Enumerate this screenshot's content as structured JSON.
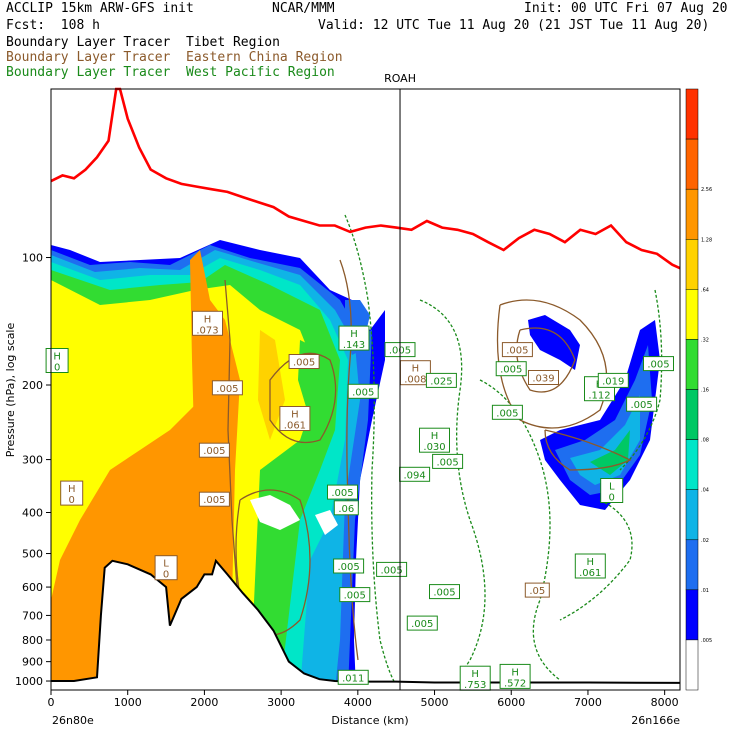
{
  "header": {
    "model": "ACCLIP 15km ARW-GFS init",
    "center": "NCAR/MMM",
    "init": "Init: 00 UTC Fri 07 Aug 20",
    "fcst": "Fcst:  108 h",
    "valid": "Valid: 12 UTC Tue 11 Aug 20 (21 JST Tue 11 Aug 20)",
    "legend": [
      {
        "text": "Boundary Layer Tracer  Tibet Region",
        "color": "#000000"
      },
      {
        "text": "Boundary Layer Tracer  Eastern China Region",
        "color": "#8b5a2b"
      },
      {
        "text": "Boundary Layer Tracer  West Pacific Region",
        "color": "#1a8a1a"
      }
    ]
  },
  "chart_data": {
    "type": "heatmap",
    "title": "",
    "xlabel": "Distance (km)",
    "ylabel": "Pressure (hPa), log scale",
    "xlim": [
      0,
      8200
    ],
    "ylim": [
      1050,
      40
    ],
    "y_scale": "log",
    "x_ticks": [
      0,
      1000,
      2000,
      3000,
      4000,
      5000,
      6000,
      7000,
      8000
    ],
    "y_ticks": [
      100,
      200,
      300,
      400,
      500,
      600,
      700,
      800,
      900,
      1000
    ],
    "x_endpoint_labels": [
      "26n80e",
      "26n166e"
    ],
    "vertical_marker": {
      "label": "ROAH",
      "x": 4550
    },
    "colorbar_levels": [
      ".005",
      ".01",
      ".02",
      ".04",
      ".08",
      ".16",
      ".32",
      ".64",
      "1.28",
      "2.56"
    ],
    "colorbar_colors": [
      "#ffffff",
      "#0000ff",
      "#1e6ef0",
      "#0fb4e6",
      "#00e6c8",
      "#00c864",
      "#32dc32",
      "#ffff00",
      "#ffd200",
      "#ff9600",
      "#ff6400",
      "#ff3200"
    ],
    "tropopause_color": "#ff0000",
    "tropopause": {
      "x": [
        0,
        150,
        300,
        450,
        600,
        750,
        850,
        900,
        1000,
        1150,
        1300,
        1500,
        1700,
        1900,
        2100,
        2300,
        2500,
        2700,
        2900,
        3100,
        3300,
        3500,
        3700,
        3900,
        4100,
        4300,
        4500,
        4700,
        4900,
        5100,
        5300,
        5500,
        5700,
        5900,
        6100,
        6300,
        6500,
        6700,
        6900,
        7100,
        7300,
        7500,
        7700,
        7900,
        8100,
        8200
      ],
      "p": [
        66,
        64,
        65,
        62,
        58,
        53,
        40,
        40,
        47,
        55,
        62,
        65,
        67,
        68,
        69,
        70,
        72,
        74,
        76,
        80,
        82,
        84,
        84,
        87,
        85,
        84,
        85,
        86,
        82,
        85,
        86,
        88,
        92,
        96,
        90,
        86,
        88,
        92,
        86,
        88,
        84,
        92,
        96,
        98,
        104,
        106
      ]
    },
    "terrain": {
      "x": [
        0,
        300,
        600,
        650,
        700,
        800,
        1000,
        1300,
        1500,
        1550,
        1700,
        1900,
        2000,
        2100,
        2150,
        2300,
        2500,
        2700,
        2900,
        3100,
        3300,
        3500,
        3700,
        3900,
        4500,
        5000,
        6000,
        7000,
        8200
      ],
      "p": [
        1000,
        1000,
        980,
        700,
        540,
        520,
        530,
        560,
        600,
        740,
        640,
        600,
        560,
        560,
        520,
        560,
        620,
        680,
        760,
        900,
        960,
        990,
        1000,
        1003,
        1003,
        1008,
        1008,
        1008,
        1010
      ]
    },
    "labels": [
      {
        "t": "H",
        "v": "0",
        "x": 80,
        "p": 175,
        "c": "#1a8a1a"
      },
      {
        "t": "H",
        "v": ".073",
        "x": 2040,
        "p": 143,
        "c": "#8b5a2b"
      },
      {
        "t": "",
        "v": ".005",
        "x": 2300,
        "p": 203,
        "c": "#8b5a2b"
      },
      {
        "t": "",
        "v": ".005",
        "x": 3300,
        "p": 176,
        "c": "#8b5a2b"
      },
      {
        "t": "H",
        "v": ".061",
        "x": 3180,
        "p": 240,
        "c": "#8b5a2b"
      },
      {
        "t": "",
        "v": ".005",
        "x": 2130,
        "p": 285,
        "c": "#8b5a2b"
      },
      {
        "t": "",
        "v": ".005",
        "x": 2130,
        "p": 372,
        "c": "#8b5a2b"
      },
      {
        "t": "H",
        "v": "0",
        "x": 270,
        "p": 360,
        "c": "#8b5a2b"
      },
      {
        "t": "L",
        "v": "0",
        "x": 1500,
        "p": 540,
        "c": "#8b5a2b"
      },
      {
        "t": "H",
        "v": ".143",
        "x": 3950,
        "p": 155,
        "c": "#1a8a1a"
      },
      {
        "t": "",
        "v": ".005",
        "x": 4550,
        "p": 165,
        "c": "#1a8a1a"
      },
      {
        "t": "H",
        "v": ".008",
        "x": 4750,
        "p": 187,
        "c": "#8b5a2b"
      },
      {
        "t": "",
        "v": ".025",
        "x": 5090,
        "p": 195,
        "c": "#1a8a1a"
      },
      {
        "t": "",
        "v": ".005",
        "x": 6080,
        "p": 165,
        "c": "#8b5a2b"
      },
      {
        "t": "",
        "v": ".005",
        "x": 6000,
        "p": 183,
        "c": "#1a8a1a"
      },
      {
        "t": "",
        "v": ".039",
        "x": 6420,
        "p": 192,
        "c": "#8b5a2b"
      },
      {
        "t": "H",
        "v": ".112",
        "x": 7150,
        "p": 204,
        "c": "#1a8a1a"
      },
      {
        "t": "",
        "v": ".019",
        "x": 7330,
        "p": 195,
        "c": "#1a8a1a"
      },
      {
        "t": "",
        "v": ".005",
        "x": 7920,
        "p": 178,
        "c": "#1a8a1a"
      },
      {
        "t": "",
        "v": ".005",
        "x": 7700,
        "p": 222,
        "c": "#1a8a1a"
      },
      {
        "t": "",
        "v": ".005",
        "x": 5950,
        "p": 232,
        "c": "#1a8a1a"
      },
      {
        "t": "",
        "v": ".005",
        "x": 4070,
        "p": 207,
        "c": "#1a8a1a"
      },
      {
        "t": "H",
        "v": ".030",
        "x": 5000,
        "p": 270,
        "c": "#1a8a1a"
      },
      {
        "t": "",
        "v": ".005",
        "x": 5170,
        "p": 303,
        "c": "#1a8a1a"
      },
      {
        "t": "",
        "v": ".094",
        "x": 4740,
        "p": 325,
        "c": "#1a8a1a"
      },
      {
        "t": "L",
        "v": "0",
        "x": 7310,
        "p": 355,
        "c": "#1a8a1a"
      },
      {
        "t": "",
        "v": ".005",
        "x": 3800,
        "p": 358,
        "c": "#1a8a1a"
      },
      {
        "t": "",
        "v": ".06",
        "x": 3850,
        "p": 390,
        "c": "#1a8a1a"
      },
      {
        "t": "",
        "v": ".005",
        "x": 3880,
        "p": 535,
        "c": "#1a8a1a"
      },
      {
        "t": "",
        "v": ".005",
        "x": 4440,
        "p": 545,
        "c": "#1a8a1a"
      },
      {
        "t": "H",
        "v": ".061",
        "x": 7030,
        "p": 535,
        "c": "#1a8a1a"
      },
      {
        "t": "",
        "v": ".005",
        "x": 3960,
        "p": 625,
        "c": "#1a8a1a"
      },
      {
        "t": "",
        "v": ".005",
        "x": 5130,
        "p": 615,
        "c": "#1a8a1a"
      },
      {
        "t": "",
        "v": ".05",
        "x": 6340,
        "p": 610,
        "c": "#8b5a2b"
      },
      {
        "t": "",
        "v": ".005",
        "x": 4840,
        "p": 730,
        "c": "#1a8a1a"
      },
      {
        "t": "",
        "v": ".011",
        "x": 3940,
        "p": 980,
        "c": "#1a8a1a"
      },
      {
        "t": "H",
        "v": ".753",
        "x": 5530,
        "p": 985,
        "c": "#1a8a1a"
      },
      {
        "t": "H",
        "v": ".572",
        "x": 6050,
        "p": 975,
        "c": "#1a8a1a"
      }
    ]
  }
}
